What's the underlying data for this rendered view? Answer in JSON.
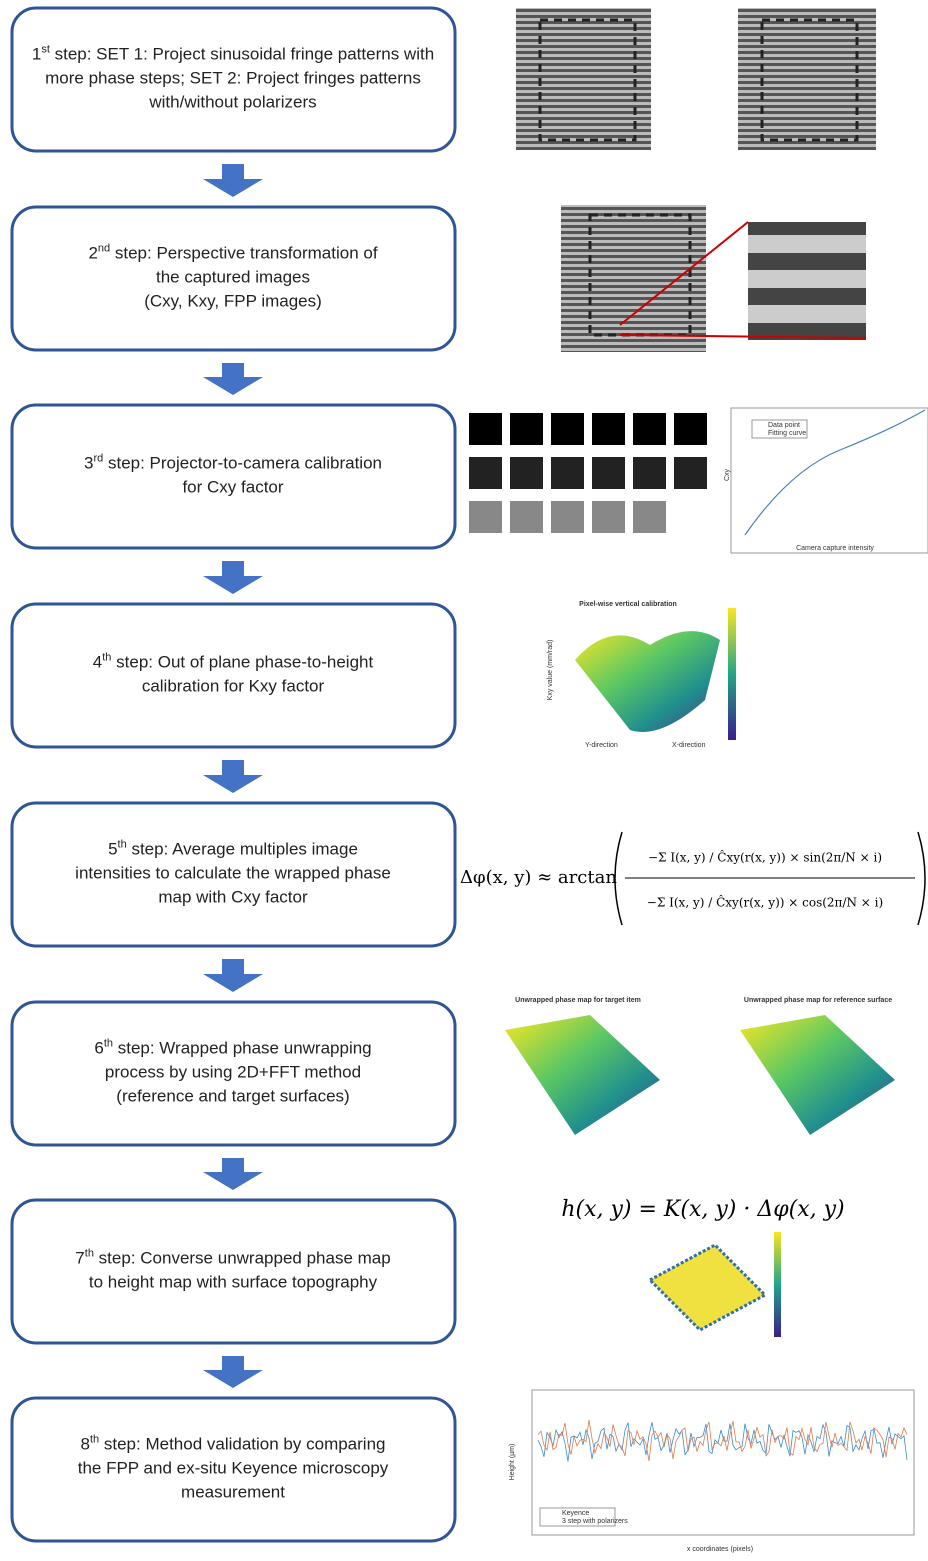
{
  "steps": [
    {
      "number": "1",
      "suffix": "st",
      "lines": [
        " step: SET 1: Project sinusoidal fringe patterns with",
        "more phase steps; SET 2: Project fringes patterns",
        "with/without polarizers"
      ]
    },
    {
      "number": "2",
      "suffix": "nd",
      "lines": [
        " step: Perspective transformation of",
        "the captured images",
        "(Cxy, Kxy, FPP images)"
      ]
    },
    {
      "number": "3",
      "suffix": "rd",
      "lines": [
        " step: Projector-to-camera calibration",
        "for Cxy factor"
      ]
    },
    {
      "number": "4",
      "suffix": "th",
      "lines": [
        " step: Out of plane phase-to-height",
        "calibration for Kxy factor"
      ]
    },
    {
      "number": "5",
      "suffix": "th",
      "lines": [
        " step: Average multiples image",
        "intensities to calculate the wrapped phase",
        "map with Cxy factor"
      ]
    },
    {
      "number": "6",
      "suffix": "th",
      "lines": [
        " step: Wrapped phase unwrapping",
        "process by using 2D+FFT method",
        "(reference and target surfaces)"
      ]
    },
    {
      "number": "7",
      "suffix": "th",
      "lines": [
        " step: Converse unwrapped phase map",
        "to height map with surface topography"
      ]
    },
    {
      "number": "8",
      "suffix": "th",
      "lines": [
        " step: Method validation by comparing",
        "the FPP and ex-situ Keyence microscopy",
        "measurement"
      ]
    }
  ],
  "figures": {
    "calibration_plot": {
      "y_label": "Cxy",
      "x_label": "Camera capture intensity",
      "legend": [
        "Data point",
        "Fitting curve"
      ]
    },
    "surface_plot": {
      "title": "Pixel-wise vertical calibration",
      "z_label": "Kxy value (mm/rad)",
      "x_label": "X-direction",
      "y_label": "Y-direction"
    },
    "phase_formula": {
      "lhs": "Δφ(x, y) ≈ arctan",
      "numerator": "−Σ I(x, y) / Ĉxy(r(x, y)) × sin(2π/N × i)",
      "denominator": "−Σ I(x, y) / Ĉxy(r(x, y)) × cos(2π/N × i)"
    },
    "unwrapped_target": {
      "title": "Unwrapped phase map for target item"
    },
    "unwrapped_reference": {
      "title": "Unwrapped phase map for reference surface"
    },
    "height_formula": "h(x, y) = K(x, y) · Δφ(x, y)",
    "validation_plot": {
      "y_label": "Height (µm)",
      "x_label": "x coordinates (pixels)",
      "legend": [
        "Keyence",
        "3 step with polarizers"
      ]
    }
  }
}
